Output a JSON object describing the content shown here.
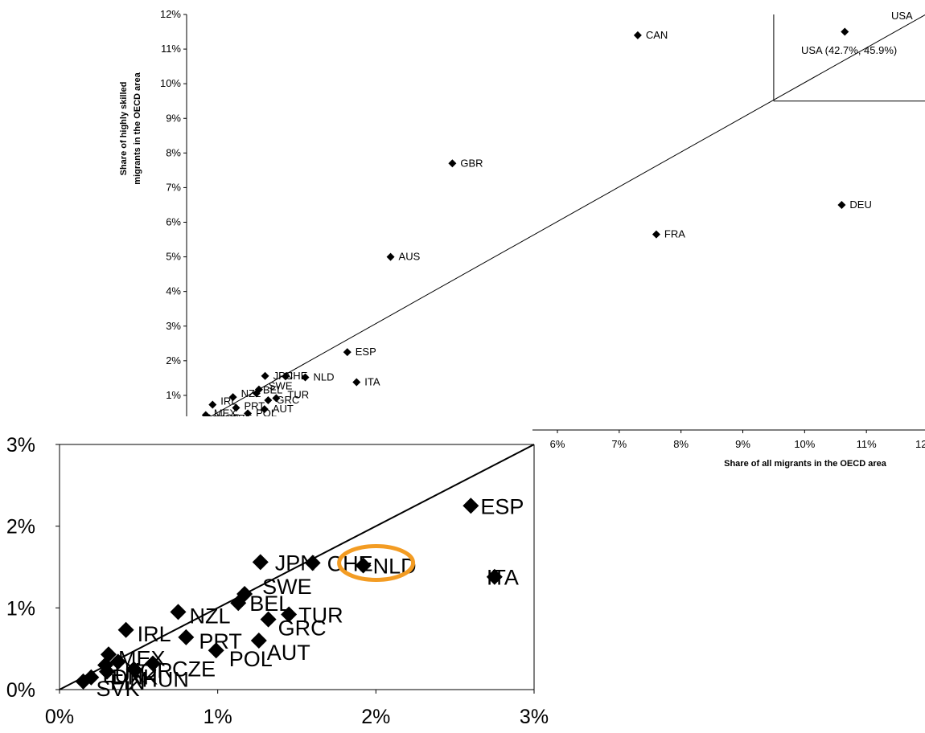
{
  "chart_data": [
    {
      "type": "scatter",
      "name": "main",
      "xlabel": "Share of all migrants in the OECD area",
      "ylabel": "Share of highly skilled migrants in the OECD area",
      "xlim": [
        0,
        12
      ],
      "ylim": [
        0,
        12
      ],
      "x_ticks": [
        "6%",
        "7%",
        "8%",
        "9%",
        "10%",
        "11%",
        "12%"
      ],
      "x_tick_values": [
        6,
        7,
        8,
        9,
        10,
        11,
        12
      ],
      "y_ticks": [
        "1%",
        "2%",
        "3%",
        "4%",
        "5%",
        "6%",
        "7%",
        "8%",
        "9%",
        "10%",
        "11%",
        "12%"
      ],
      "y_tick_values": [
        1,
        2,
        3,
        4,
        5,
        6,
        7,
        8,
        9,
        10,
        11,
        12
      ],
      "usa_corner_label": "USA",
      "usa_note": "USA (42.7%, 45.9%)",
      "points": [
        {
          "label": "USA",
          "x": 10.65,
          "y": 11.5
        },
        {
          "label": "CAN",
          "x": 7.3,
          "y": 11.4
        },
        {
          "label": "GBR",
          "x": 4.3,
          "y": 7.7
        },
        {
          "label": "DEU",
          "x": 10.6,
          "y": 6.5
        },
        {
          "label": "FRA",
          "x": 7.6,
          "y": 5.65
        },
        {
          "label": "AUS",
          "x": 3.3,
          "y": 5.0
        },
        {
          "label": "ESP",
          "x": 2.6,
          "y": 2.25
        },
        {
          "label": "ITA",
          "x": 2.75,
          "y": 1.38
        },
        {
          "label": "NLD",
          "x": 1.92,
          "y": 1.52
        },
        {
          "label": "CHE",
          "x": 1.6,
          "y": 1.55
        },
        {
          "label": "JPN",
          "x": 1.27,
          "y": 1.56
        },
        {
          "label": "SWE",
          "x": 1.17,
          "y": 1.17
        },
        {
          "label": "BEL",
          "x": 1.13,
          "y": 1.06
        },
        {
          "label": "TUR",
          "x": 1.45,
          "y": 0.92
        },
        {
          "label": "GRC",
          "x": 1.32,
          "y": 0.86
        },
        {
          "label": "NZL",
          "x": 0.75,
          "y": 0.95
        },
        {
          "label": "IRL",
          "x": 0.42,
          "y": 0.73
        },
        {
          "label": "PRT",
          "x": 0.8,
          "y": 0.64
        },
        {
          "label": "AUT",
          "x": 1.26,
          "y": 0.6
        },
        {
          "label": "POL",
          "x": 0.99,
          "y": 0.48
        },
        {
          "label": "MEX",
          "x": 0.31,
          "y": 0.43
        },
        {
          "label": "NOR",
          "x": 0.37,
          "y": 0.34
        },
        {
          "label": "DNK",
          "x": 0.29,
          "y": 0.3
        },
        {
          "label": "CZE",
          "x": 0.59,
          "y": 0.32
        },
        {
          "label": "HUN",
          "x": 0.47,
          "y": 0.25
        },
        {
          "label": "FIN",
          "x": 0.3,
          "y": 0.22
        },
        {
          "label": "LUX",
          "x": 0.2,
          "y": 0.15
        },
        {
          "label": "SVK",
          "x": 0.15,
          "y": 0.1
        }
      ]
    },
    {
      "type": "scatter",
      "name": "inset",
      "xlim": [
        0,
        3
      ],
      "ylim": [
        0,
        3
      ],
      "x_ticks": [
        "0%",
        "1%",
        "2%",
        "3%"
      ],
      "x_tick_values": [
        0,
        1,
        2,
        3
      ],
      "y_ticks": [
        "0%",
        "1%",
        "2%",
        "3%"
      ],
      "y_tick_values": [
        0,
        1,
        2,
        3
      ],
      "highlight": {
        "label": "NLD",
        "color": "#f39c23"
      },
      "points": [
        {
          "label": "ESP",
          "x": 2.6,
          "y": 2.25
        },
        {
          "label": "ITA",
          "x": 2.75,
          "y": 1.38
        },
        {
          "label": "NLD",
          "x": 1.92,
          "y": 1.52
        },
        {
          "label": "CHE",
          "x": 1.6,
          "y": 1.55
        },
        {
          "label": "JPN",
          "x": 1.27,
          "y": 1.56
        },
        {
          "label": "SWE",
          "x": 1.17,
          "y": 1.17
        },
        {
          "label": "BEL",
          "x": 1.13,
          "y": 1.06
        },
        {
          "label": "TUR",
          "x": 1.45,
          "y": 0.92
        },
        {
          "label": "GRC",
          "x": 1.32,
          "y": 0.86
        },
        {
          "label": "NZL",
          "x": 0.75,
          "y": 0.95
        },
        {
          "label": "IRL",
          "x": 0.42,
          "y": 0.73
        },
        {
          "label": "PRT",
          "x": 0.8,
          "y": 0.64
        },
        {
          "label": "AUT",
          "x": 1.26,
          "y": 0.6
        },
        {
          "label": "POL",
          "x": 0.99,
          "y": 0.48
        },
        {
          "label": "MEX",
          "x": 0.31,
          "y": 0.43
        },
        {
          "label": "NOR",
          "x": 0.37,
          "y": 0.34
        },
        {
          "label": "DNK",
          "x": 0.29,
          "y": 0.3
        },
        {
          "label": "CZE",
          "x": 0.59,
          "y": 0.32
        },
        {
          "label": "HUN",
          "x": 0.47,
          "y": 0.25
        },
        {
          "label": "FIN",
          "x": 0.3,
          "y": 0.22
        },
        {
          "label": "LUX",
          "x": 0.2,
          "y": 0.15
        },
        {
          "label": "SVK",
          "x": 0.15,
          "y": 0.1
        }
      ]
    }
  ]
}
